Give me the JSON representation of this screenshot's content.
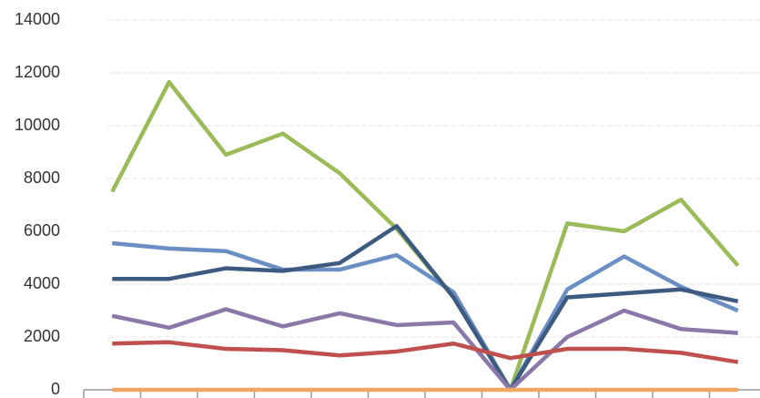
{
  "chart_data": {
    "type": "line",
    "categories": [
      null,
      null,
      null,
      null,
      null,
      null,
      null,
      null,
      null,
      null,
      null,
      null
    ],
    "series": [
      {
        "color": "#9bbb59",
        "values": [
          7500,
          11650,
          8900,
          9700,
          8200,
          6100,
          3500,
          0,
          6300,
          6000,
          7200,
          4700
        ]
      },
      {
        "color": "#6b8fc4",
        "values": [
          5550,
          5350,
          5250,
          4550,
          4550,
          5100,
          3700,
          0,
          3800,
          5050,
          3900,
          3000
        ]
      },
      {
        "color": "#3d5a80",
        "values": [
          4200,
          4200,
          4600,
          4500,
          4800,
          6200,
          3500,
          0,
          3500,
          3650,
          3800,
          3350
        ]
      },
      {
        "color": "#8a78a8",
        "values": [
          2800,
          2350,
          3050,
          2400,
          2900,
          2450,
          2550,
          0,
          2000,
          3000,
          2300,
          2150
        ]
      },
      {
        "color": "#c0504d",
        "values": [
          1750,
          1800,
          1550,
          1500,
          1300,
          1450,
          1750,
          1200,
          1550,
          1550,
          1400,
          1050
        ]
      },
      {
        "color": "#f0a860",
        "values": [
          0,
          0,
          0,
          0,
          0,
          0,
          0,
          0,
          0,
          0,
          0,
          0
        ]
      }
    ],
    "ylim": [
      0,
      14000
    ],
    "yticks": [
      0,
      2000,
      4000,
      6000,
      8000,
      10000,
      12000,
      14000
    ],
    "grid": true
  }
}
